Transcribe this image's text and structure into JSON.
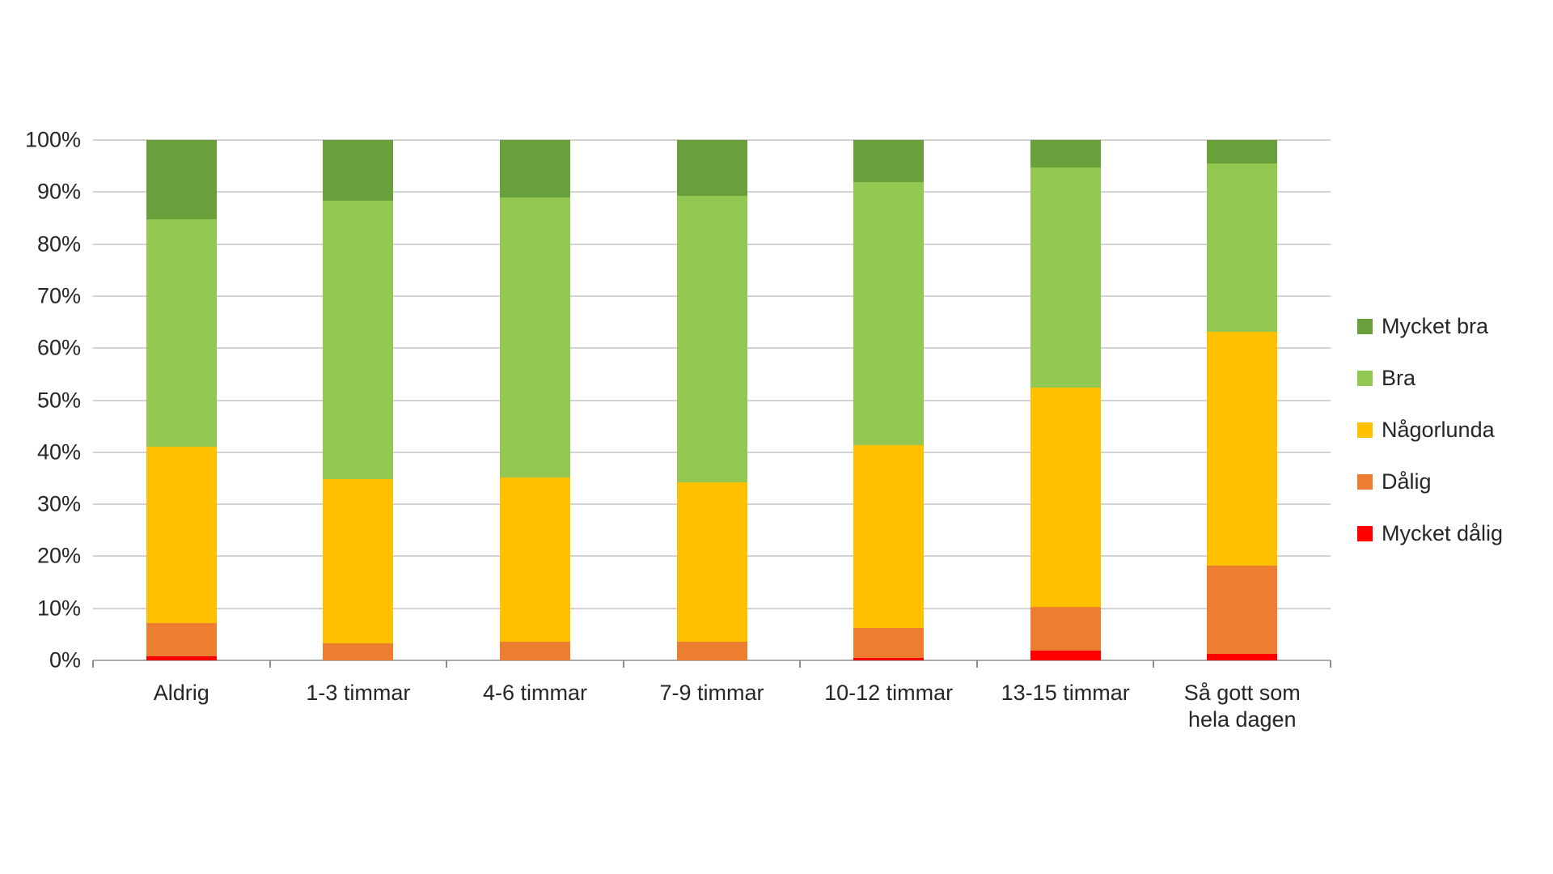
{
  "chart_data": {
    "type": "bar",
    "subtype": "stacked-100-percent",
    "title": "",
    "xlabel": "",
    "ylabel": "",
    "ylim": [
      0,
      100
    ],
    "grid": true,
    "legend_position": "right",
    "categories": [
      "Aldrig",
      "1-3 timmar",
      "4-6 timmar",
      "7-9 timmar",
      "10-12 timmar",
      "13-15 timmar",
      "Så gott som\nhela dagen"
    ],
    "yticks": [
      "0%",
      "10%",
      "20%",
      "30%",
      "40%",
      "50%",
      "60%",
      "70%",
      "80%",
      "90%",
      "100%"
    ],
    "series": [
      {
        "name": "Mycket dålig",
        "color": "#ff0000",
        "values": [
          0.8,
          0,
          0,
          0,
          0.5,
          1.8,
          1.2
        ]
      },
      {
        "name": "Dålig",
        "color": "#ed7d31",
        "values": [
          6.4,
          3.2,
          3.6,
          3.6,
          5.8,
          8.4,
          17.0
        ]
      },
      {
        "name": "Någorlunda",
        "color": "#ffc000",
        "values": [
          33.8,
          31.6,
          31.6,
          30.6,
          35.1,
          42.2,
          45.0
        ]
      },
      {
        "name": "Bra",
        "color": "#92c852",
        "values": [
          43.7,
          53.5,
          53.7,
          55.0,
          50.5,
          42.3,
          32.3
        ]
      },
      {
        "name": "Mycket bra",
        "color": "#68a03c",
        "values": [
          15.3,
          11.7,
          11.1,
          10.8,
          8.1,
          5.3,
          4.5
        ]
      }
    ],
    "legend_order": [
      "Mycket bra",
      "Bra",
      "Någorlunda",
      "Dålig",
      "Mycket dålig"
    ],
    "colors": {
      "mycket_bra": "#68a03c",
      "bra": "#92c852",
      "nagorlunda": "#ffc000",
      "dalig": "#ed7d31",
      "mycket_dalig": "#ff0000",
      "gridline": "#d2d2d2",
      "axis_line": "#a8a8a8",
      "text": "#262626"
    }
  }
}
